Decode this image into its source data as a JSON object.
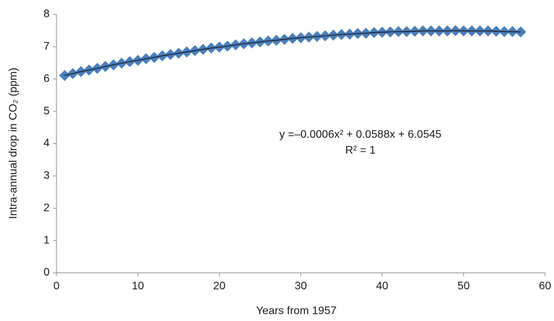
{
  "chart_data": {
    "type": "scatter",
    "x_label": "Years from 1957",
    "y_label": "Intra-annual drop in CO₂ (ppm)",
    "annotations": [
      "y =–0.0006x² + 0.0588x + 6.0545",
      "R² = 1"
    ],
    "x": [
      1,
      2,
      3,
      4,
      5,
      6,
      7,
      8,
      9,
      10,
      11,
      12,
      13,
      14,
      15,
      16,
      17,
      18,
      19,
      20,
      21,
      22,
      23,
      24,
      25,
      26,
      27,
      28,
      29,
      30,
      31,
      32,
      33,
      34,
      35,
      36,
      37,
      38,
      39,
      40,
      41,
      42,
      43,
      44,
      45,
      46,
      47,
      48,
      49,
      50,
      51,
      52,
      53,
      54,
      55,
      56,
      57
    ],
    "series": [
      {
        "color": "#4a7ebb",
        "trendline_color": "#1a1a1a",
        "values": [
          6.11,
          6.17,
          6.23,
          6.28,
          6.33,
          6.39,
          6.44,
          6.49,
          6.54,
          6.58,
          6.63,
          6.67,
          6.72,
          6.76,
          6.8,
          6.84,
          6.88,
          6.92,
          6.96,
          6.99,
          7.02,
          7.06,
          7.09,
          7.12,
          7.15,
          7.18,
          7.2,
          7.23,
          7.26,
          7.28,
          7.3,
          7.32,
          7.34,
          7.36,
          7.38,
          7.39,
          7.41,
          7.42,
          7.44,
          7.45,
          7.46,
          7.47,
          7.47,
          7.48,
          7.49,
          7.49,
          7.49,
          7.49,
          7.5,
          7.49,
          7.49,
          7.49,
          7.49,
          7.48,
          7.47,
          7.47,
          7.46
        ]
      }
    ],
    "xlim": [
      0,
      60
    ],
    "xticks": [
      0,
      10,
      20,
      30,
      40,
      50,
      60
    ],
    "ylim": [
      0,
      8
    ],
    "yticks": [
      0,
      1,
      2,
      3,
      4,
      5,
      6,
      7,
      8
    ],
    "grid": false
  }
}
